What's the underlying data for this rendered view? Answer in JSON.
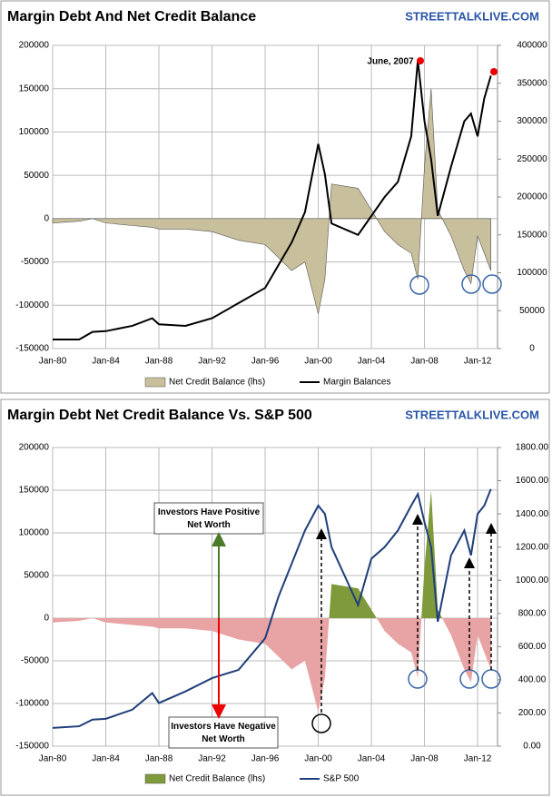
{
  "chart_data": [
    {
      "type": "area-line",
      "title": "Margin Debt And Net Credit Balance",
      "source": "STREETTALKLIVE.COM",
      "annotations": [
        "June, 2007"
      ],
      "x": [
        1980,
        1982,
        1983,
        1984,
        1986,
        1987.5,
        1988,
        1990,
        1992,
        1994,
        1996,
        1997,
        1998,
        1999,
        2000,
        2000.5,
        2001,
        2003,
        2004,
        2005,
        2006,
        2007,
        2007.5,
        2008,
        2008.5,
        2009,
        2010,
        2011,
        2011.5,
        2012,
        2012.5,
        2013
      ],
      "xlim": [
        1980,
        2013.5
      ],
      "xticks": [
        {
          "value": 1980,
          "label": "Jan-80"
        },
        {
          "value": 1984,
          "label": "Jan-84"
        },
        {
          "value": 1988,
          "label": "Jan-88"
        },
        {
          "value": 1992,
          "label": "Jan-92"
        },
        {
          "value": 1996,
          "label": "Jan-96"
        },
        {
          "value": 2000,
          "label": "Jan-00"
        },
        {
          "value": 2004,
          "label": "Jan-04"
        },
        {
          "value": 2008,
          "label": "Jan-08"
        },
        {
          "value": 2012,
          "label": "Jan-12"
        }
      ],
      "ylim": [
        -150000,
        200000
      ],
      "yticks": [
        -150000,
        -100000,
        -50000,
        0,
        50000,
        100000,
        150000,
        200000
      ],
      "y2lim": [
        0,
        400000
      ],
      "y2ticks": [
        0,
        50000,
        100000,
        150000,
        200000,
        250000,
        300000,
        350000,
        400000
      ],
      "grid": true,
      "series": [
        {
          "name": "Net Credit Balance (lhs)",
          "kind": "area",
          "color": "#c8bf9c",
          "values": [
            -5000,
            -3000,
            0,
            -5000,
            -8000,
            -10000,
            -12000,
            -12000,
            -15000,
            -25000,
            -30000,
            -45000,
            -60000,
            -50000,
            -110000,
            -70000,
            40000,
            35000,
            10000,
            -15000,
            -30000,
            -40000,
            -70000,
            60000,
            150000,
            10000,
            -20000,
            -60000,
            -75000,
            -20000,
            -40000,
            -60000
          ]
        },
        {
          "name": "Margin Balances",
          "kind": "line",
          "axis": "y2",
          "color": "#000000",
          "values": [
            12000,
            12000,
            22000,
            23000,
            30000,
            40000,
            32000,
            30000,
            40000,
            60000,
            80000,
            110000,
            140000,
            180000,
            270000,
            230000,
            165000,
            150000,
            175000,
            200000,
            220000,
            280000,
            380000,
            300000,
            250000,
            175000,
            240000,
            300000,
            310000,
            280000,
            330000,
            360000
          ]
        }
      ]
    },
    {
      "type": "area-line",
      "title": "Margin Debt Net Credit Balance Vs. S&P 500",
      "source": "STREETTALKLIVE.COM",
      "annotations": [
        "Investors  Have Positive Net Worth",
        "Investors  Have Negative Net Worth"
      ],
      "x": [
        1980,
        1982,
        1983,
        1984,
        1986,
        1987.5,
        1988,
        1990,
        1992,
        1994,
        1996,
        1997,
        1998,
        1999,
        2000,
        2000.5,
        2001,
        2003,
        2004,
        2005,
        2006,
        2007,
        2007.5,
        2008,
        2008.5,
        2009,
        2010,
        2011,
        2011.5,
        2012,
        2012.5,
        2013
      ],
      "xlim": [
        1980,
        2013.5
      ],
      "xticks": [
        {
          "value": 1980,
          "label": "Jan-80"
        },
        {
          "value": 1984,
          "label": "Jan-84"
        },
        {
          "value": 1988,
          "label": "Jan-88"
        },
        {
          "value": 1992,
          "label": "Jan-92"
        },
        {
          "value": 1996,
          "label": "Jan-96"
        },
        {
          "value": 2000,
          "label": "Jan-00"
        },
        {
          "value": 2004,
          "label": "Jan-04"
        },
        {
          "value": 2008,
          "label": "Jan-08"
        },
        {
          "value": 2012,
          "label": "Jan-12"
        }
      ],
      "ylim": [
        -150000,
        200000
      ],
      "yticks": [
        -150000,
        -100000,
        -50000,
        0,
        50000,
        100000,
        150000,
        200000
      ],
      "y2lim": [
        0,
        1800
      ],
      "y2ticks": [
        {
          "value": 0,
          "label": "0.00"
        },
        {
          "value": 200,
          "label": "200.00"
        },
        {
          "value": 400,
          "label": "400.00"
        },
        {
          "value": 600,
          "label": "600.00"
        },
        {
          "value": 800,
          "label": "800.00"
        },
        {
          "value": 1000,
          "label": "1000.00"
        },
        {
          "value": 1200,
          "label": "1200.00"
        },
        {
          "value": 1400,
          "label": "1400.00"
        },
        {
          "value": 1600,
          "label": "1600.00"
        },
        {
          "value": 1800,
          "label": "1800.00"
        }
      ],
      "grid": true,
      "series": [
        {
          "name": "Net Credit Balance (lhs)",
          "kind": "area",
          "color": "#7f9a3a",
          "negative_color": "#e8a4a4",
          "values": [
            -5000,
            -3000,
            0,
            -5000,
            -8000,
            -10000,
            -12000,
            -12000,
            -15000,
            -25000,
            -30000,
            -45000,
            -60000,
            -50000,
            -110000,
            -70000,
            40000,
            35000,
            10000,
            -15000,
            -30000,
            -40000,
            -70000,
            60000,
            150000,
            10000,
            -20000,
            -60000,
            -75000,
            -20000,
            -40000,
            -60000
          ]
        },
        {
          "name": "S&P 500",
          "kind": "line",
          "axis": "y2",
          "color": "#1f3f7a",
          "values": [
            110,
            120,
            160,
            165,
            220,
            320,
            260,
            330,
            410,
            460,
            650,
            900,
            1100,
            1300,
            1450,
            1400,
            1200,
            850,
            1130,
            1200,
            1300,
            1450,
            1520,
            1350,
            1200,
            750,
            1150,
            1300,
            1150,
            1400,
            1450,
            1550
          ]
        }
      ]
    }
  ]
}
